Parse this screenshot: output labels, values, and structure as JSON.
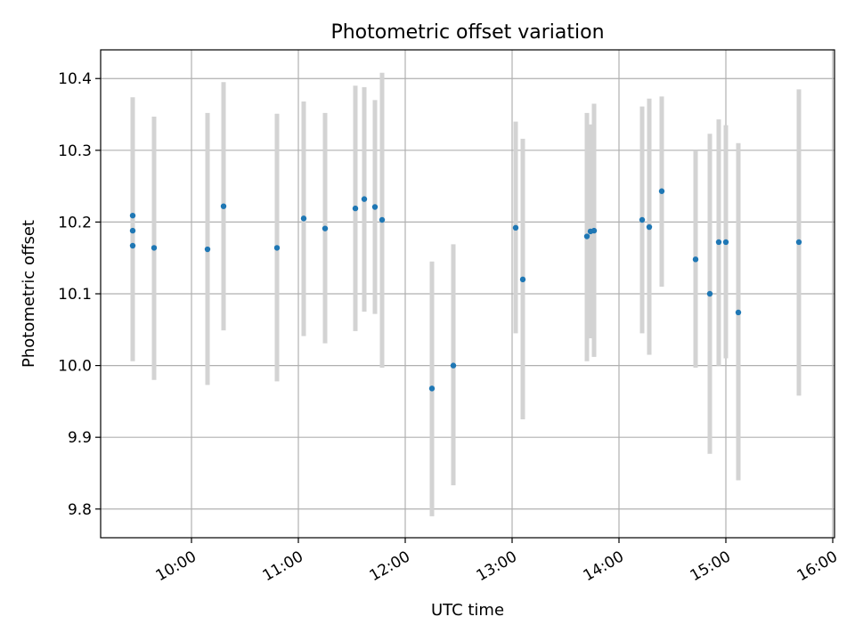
{
  "chart_data": {
    "type": "scatter",
    "title": "Photometric offset variation",
    "xlabel": "UTC time",
    "ylabel": "Photometric offset",
    "xlim": [
      "09:09",
      "16:01"
    ],
    "ylim": [
      9.76,
      10.44
    ],
    "xticks": [
      "10:00",
      "11:00",
      "12:00",
      "13:00",
      "14:00",
      "15:00",
      "16:00"
    ],
    "yticks": [
      "9.8",
      "9.9",
      "10.0",
      "10.1",
      "10.2",
      "10.3",
      "10.4"
    ],
    "grid": true,
    "colors": {
      "point": "#1f77b4",
      "errorbar": "#d3d3d3",
      "grid": "#b0b0b0"
    },
    "points": [
      {
        "time": "09:27",
        "y": 10.188,
        "yerr_low": 10.045,
        "yerr_high": 10.33
      },
      {
        "time": "09:27",
        "y": 10.209,
        "yerr_low": 10.045,
        "yerr_high": 10.374
      },
      {
        "time": "09:27",
        "y": 10.167,
        "yerr_low": 10.006,
        "yerr_high": 10.33
      },
      {
        "time": "09:39",
        "y": 10.164,
        "yerr_low": 9.98,
        "yerr_high": 10.347
      },
      {
        "time": "10:09",
        "y": 10.162,
        "yerr_low": 9.973,
        "yerr_high": 10.352
      },
      {
        "time": "10:18",
        "y": 10.222,
        "yerr_low": 10.049,
        "yerr_high": 10.395
      },
      {
        "time": "10:48",
        "y": 10.164,
        "yerr_low": 9.978,
        "yerr_high": 10.351
      },
      {
        "time": "11:03",
        "y": 10.205,
        "yerr_low": 10.041,
        "yerr_high": 10.368
      },
      {
        "time": "11:15",
        "y": 10.191,
        "yerr_low": 10.031,
        "yerr_high": 10.352
      },
      {
        "time": "11:32",
        "y": 10.219,
        "yerr_low": 10.048,
        "yerr_high": 10.39
      },
      {
        "time": "11:37",
        "y": 10.232,
        "yerr_low": 10.075,
        "yerr_high": 10.388
      },
      {
        "time": "11:43",
        "y": 10.221,
        "yerr_low": 10.072,
        "yerr_high": 10.37
      },
      {
        "time": "11:47",
        "y": 10.203,
        "yerr_low": 9.997,
        "yerr_high": 10.408
      },
      {
        "time": "12:15",
        "y": 9.968,
        "yerr_low": 9.79,
        "yerr_high": 10.145
      },
      {
        "time": "12:27",
        "y": 10.0,
        "yerr_low": 9.833,
        "yerr_high": 10.169
      },
      {
        "time": "13:02",
        "y": 10.192,
        "yerr_low": 10.045,
        "yerr_high": 10.34
      },
      {
        "time": "13:06",
        "y": 10.12,
        "yerr_low": 9.925,
        "yerr_high": 10.316
      },
      {
        "time": "13:42",
        "y": 10.18,
        "yerr_low": 10.006,
        "yerr_high": 10.352
      },
      {
        "time": "13:44",
        "y": 10.187,
        "yerr_low": 10.038,
        "yerr_high": 10.336
      },
      {
        "time": "13:46",
        "y": 10.188,
        "yerr_low": 10.012,
        "yerr_high": 10.365
      },
      {
        "time": "14:13",
        "y": 10.203,
        "yerr_low": 10.045,
        "yerr_high": 10.361
      },
      {
        "time": "14:17",
        "y": 10.193,
        "yerr_low": 10.015,
        "yerr_high": 10.372
      },
      {
        "time": "14:24",
        "y": 10.243,
        "yerr_low": 10.11,
        "yerr_high": 10.375
      },
      {
        "time": "14:43",
        "y": 10.148,
        "yerr_low": 9.997,
        "yerr_high": 10.3
      },
      {
        "time": "14:51",
        "y": 10.1,
        "yerr_low": 9.877,
        "yerr_high": 10.323
      },
      {
        "time": "14:56",
        "y": 10.172,
        "yerr_low": 10.0,
        "yerr_high": 10.343
      },
      {
        "time": "15:00",
        "y": 10.172,
        "yerr_low": 10.01,
        "yerr_high": 10.335
      },
      {
        "time": "15:07",
        "y": 10.074,
        "yerr_low": 9.84,
        "yerr_high": 10.31
      },
      {
        "time": "15:41",
        "y": 10.172,
        "yerr_low": 9.958,
        "yerr_high": 10.385
      }
    ]
  }
}
